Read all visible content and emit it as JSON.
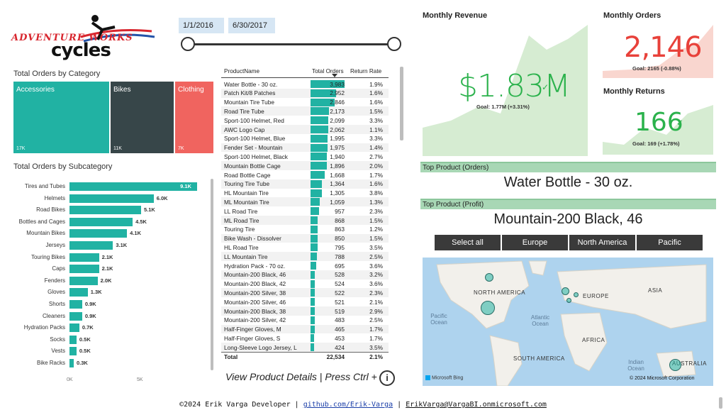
{
  "logo": {
    "line1": "ADVENTURE WORKS",
    "line2": "cycles"
  },
  "date_slicer": {
    "start": "1/1/2016",
    "end": "6/30/2017"
  },
  "category_treemap": {
    "title": "Total Orders by Category",
    "tiles": [
      {
        "name": "Accessories",
        "value": "17K",
        "color": "#21b2a3"
      },
      {
        "name": "Bikes",
        "value": "11K",
        "color": "#374649"
      },
      {
        "name": "Clothing",
        "value": "7K",
        "color": "#f0645f"
      }
    ]
  },
  "chart_data": {
    "type": "bar",
    "title": "Total Orders by Subcategory",
    "orientation": "horizontal",
    "categories": [
      "Tires and Tubes",
      "Helmets",
      "Road Bikes",
      "Bottles and Cages",
      "Mountain Bikes",
      "Jerseys",
      "Touring Bikes",
      "Caps",
      "Fenders",
      "Gloves",
      "Shorts",
      "Cleaners",
      "Hydration Packs",
      "Socks",
      "Vests",
      "Bike Racks"
    ],
    "values": [
      9100,
      6000,
      5100,
      4500,
      4100,
      3100,
      2100,
      2100,
      2000,
      1300,
      900,
      900,
      700,
      500,
      500,
      300
    ],
    "value_labels": [
      "9.1K",
      "6.0K",
      "5.1K",
      "4.5K",
      "4.1K",
      "3.1K",
      "2.1K",
      "2.1K",
      "2.0K",
      "1.3K",
      "0.9K",
      "0.9K",
      "0.7K",
      "0.5K",
      "0.5K",
      "0.3K"
    ],
    "xlim": [
      0,
      9600
    ],
    "x_ticks": [
      "0K",
      "5K"
    ],
    "bar_color": "#21b2a3",
    "grid": false
  },
  "product_table": {
    "columns": [
      "ProductName",
      "Total Orders",
      "Return Rate"
    ],
    "max_orders": 3983,
    "rows": [
      {
        "name": "Water Bottle - 30 oz.",
        "orders": 3983,
        "orders_label": "3,983",
        "rate": "1.9%"
      },
      {
        "name": "Patch Kit/8 Patches",
        "orders": 2952,
        "orders_label": "2,952",
        "rate": "1.6%"
      },
      {
        "name": "Mountain Tire Tube",
        "orders": 2846,
        "orders_label": "2,846",
        "rate": "1.6%"
      },
      {
        "name": "Road Tire Tube",
        "orders": 2173,
        "orders_label": "2,173",
        "rate": "1.5%"
      },
      {
        "name": "Sport-100 Helmet, Red",
        "orders": 2099,
        "orders_label": "2,099",
        "rate": "3.3%"
      },
      {
        "name": "AWC Logo Cap",
        "orders": 2062,
        "orders_label": "2,062",
        "rate": "1.1%"
      },
      {
        "name": "Sport-100 Helmet, Blue",
        "orders": 1995,
        "orders_label": "1,995",
        "rate": "3.3%"
      },
      {
        "name": "Fender Set - Mountain",
        "orders": 1975,
        "orders_label": "1,975",
        "rate": "1.4%"
      },
      {
        "name": "Sport-100 Helmet, Black",
        "orders": 1940,
        "orders_label": "1,940",
        "rate": "2.7%"
      },
      {
        "name": "Mountain Bottle Cage",
        "orders": 1896,
        "orders_label": "1,896",
        "rate": "2.0%"
      },
      {
        "name": "Road Bottle Cage",
        "orders": 1668,
        "orders_label": "1,668",
        "rate": "1.7%"
      },
      {
        "name": "Touring Tire Tube",
        "orders": 1364,
        "orders_label": "1,364",
        "rate": "1.6%"
      },
      {
        "name": "HL Mountain Tire",
        "orders": 1305,
        "orders_label": "1,305",
        "rate": "3.8%"
      },
      {
        "name": "ML Mountain Tire",
        "orders": 1059,
        "orders_label": "1,059",
        "rate": "1.3%"
      },
      {
        "name": "LL Road Tire",
        "orders": 957,
        "orders_label": "957",
        "rate": "2.3%"
      },
      {
        "name": "ML Road Tire",
        "orders": 868,
        "orders_label": "868",
        "rate": "1.5%"
      },
      {
        "name": "Touring Tire",
        "orders": 863,
        "orders_label": "863",
        "rate": "1.2%"
      },
      {
        "name": "Bike Wash - Dissolver",
        "orders": 850,
        "orders_label": "850",
        "rate": "1.5%"
      },
      {
        "name": "HL Road Tire",
        "orders": 795,
        "orders_label": "795",
        "rate": "3.5%"
      },
      {
        "name": "LL Mountain Tire",
        "orders": 788,
        "orders_label": "788",
        "rate": "2.5%"
      },
      {
        "name": "Hydration Pack - 70 oz.",
        "orders": 695,
        "orders_label": "695",
        "rate": "3.6%"
      },
      {
        "name": "Mountain-200 Black, 46",
        "orders": 528,
        "orders_label": "528",
        "rate": "3.2%"
      },
      {
        "name": "Mountain-200 Black, 42",
        "orders": 524,
        "orders_label": "524",
        "rate": "3.6%"
      },
      {
        "name": "Mountain-200 Silver, 38",
        "orders": 522,
        "orders_label": "522",
        "rate": "2.3%"
      },
      {
        "name": "Mountain-200 Silver, 46",
        "orders": 521,
        "orders_label": "521",
        "rate": "2.1%"
      },
      {
        "name": "Mountain-200 Black, 38",
        "orders": 519,
        "orders_label": "519",
        "rate": "2.9%"
      },
      {
        "name": "Mountain-200 Silver, 42",
        "orders": 483,
        "orders_label": "483",
        "rate": "2.5%"
      },
      {
        "name": "Half-Finger Gloves, M",
        "orders": 465,
        "orders_label": "465",
        "rate": "1.7%"
      },
      {
        "name": "Half-Finger Gloves, S",
        "orders": 453,
        "orders_label": "453",
        "rate": "1.7%"
      },
      {
        "name": "Long-Sleeve Logo Jersey, L",
        "orders": 424,
        "orders_label": "424",
        "rate": "3.5%"
      }
    ],
    "total": {
      "label": "Total",
      "orders": "22,534",
      "rate": "2.1%"
    },
    "drillthrough_hint": "View Product Details | Press Ctrl +",
    "info_icon": "info-icon"
  },
  "kpis": {
    "revenue": {
      "title": "Monthly Revenue",
      "value": "$1.83M",
      "goal": "Goal: 1.77M (+3.31%)",
      "status": "above",
      "color": "#2bb24c"
    },
    "orders": {
      "title": "Monthly Orders",
      "value": "2,146",
      "goal": "Goal: 2165 (-0.88%)",
      "status": "below",
      "color": "#e8413a"
    },
    "returns": {
      "title": "Monthly Returns",
      "value": "166",
      "goal": "Goal: 169 (+1.78%)",
      "status": "above",
      "color": "#2bb24c"
    }
  },
  "top_product_orders": {
    "title": "Top Product (Orders)",
    "value": "Water Bottle - 30 oz."
  },
  "top_product_profit": {
    "title": "Top Product (Profit)",
    "value": "Mountain-200 Black, 46"
  },
  "region_slicer": {
    "options": [
      "Select all",
      "Europe",
      "North America",
      "Pacific"
    ]
  },
  "map": {
    "labels": {
      "na": "NORTH AMERICA",
      "eu": "EUROPE",
      "asia": "ASIA",
      "af": "AFRICA",
      "sa": "SOUTH AMERICA",
      "au": "AUSTRALIA"
    },
    "oceans": {
      "pacific": "Pacific Ocean",
      "atlantic": "Atlantic Ocean",
      "indian": "Indian Ocean"
    },
    "attribution": "Microsoft Bing",
    "copyright": "© 2024 Microsoft Corporation"
  },
  "footer": {
    "author": "©2024 Erik Varga Developer |",
    "github": "github.com/Erik-Varga",
    "sep": "|",
    "email": "ErikVarga@VargaBI.onmicrosoft.com"
  }
}
